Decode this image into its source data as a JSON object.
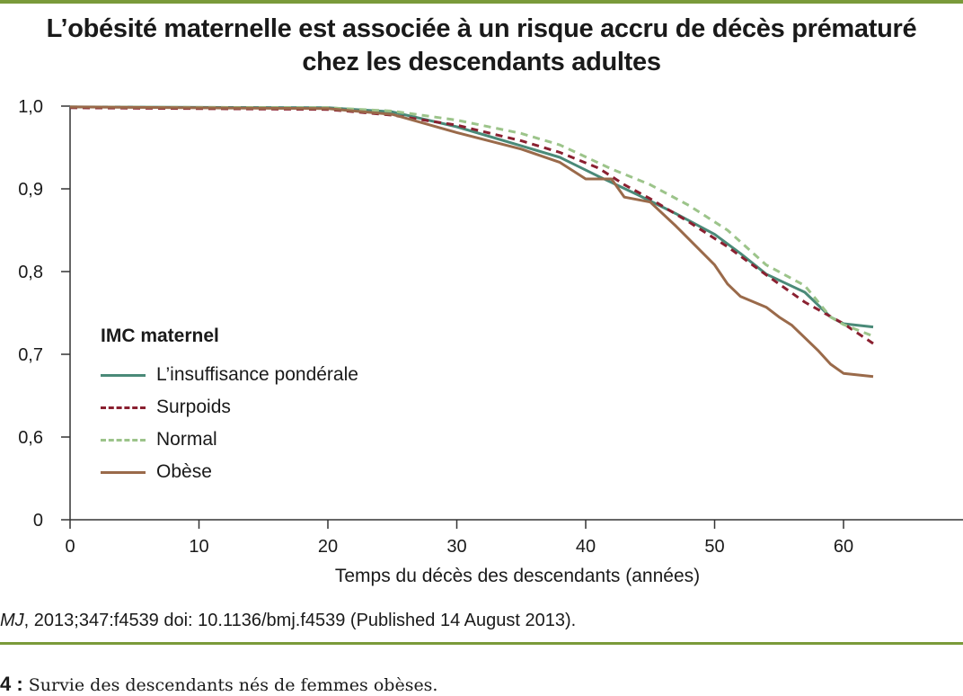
{
  "figure": {
    "title_line1": "L’obésité maternelle est associée à un risque accru de décès prématuré",
    "title_line2": "chez les descendants adultes",
    "source_italic": "MJ",
    "source_text": ", 2013;347:f4539 doi: 10.1136/bmj.f4539 (Published 14 August 2013).",
    "caption_number": "4 :",
    "caption_text": " Survie des descendants nés de femmes obèses."
  },
  "chart_data": {
    "type": "line",
    "xlabel": "Temps du décès des descendants (années)",
    "ylabel": "",
    "legend_title": "IMC maternel",
    "legend_position": "left",
    "grid": false,
    "xlim": [
      0,
      70
    ],
    "x_ticks": [
      0,
      10,
      20,
      30,
      40,
      50,
      60
    ],
    "x_tick_labels": [
      "0",
      "10",
      "20",
      "30",
      "40",
      "50",
      "60"
    ],
    "y_ticks": [
      0,
      0.6,
      0.7,
      0.8,
      0.9,
      1.0
    ],
    "y_tick_labels": [
      "0",
      "0,6",
      "0,7",
      "0,8",
      "0,9",
      "1,0"
    ],
    "y_axis_break": "0 to 0.55",
    "series": [
      {
        "name": "L’insuffisance pondérale",
        "color": "#4a8a78",
        "dash": "solid",
        "points": [
          [
            0,
            0.999
          ],
          [
            20,
            0.998
          ],
          [
            25,
            0.993
          ],
          [
            30,
            0.975
          ],
          [
            35,
            0.952
          ],
          [
            38,
            0.938
          ],
          [
            41,
            0.915
          ],
          [
            44,
            0.893
          ],
          [
            47,
            0.87
          ],
          [
            50,
            0.845
          ],
          [
            52,
            0.822
          ],
          [
            54,
            0.797
          ],
          [
            57,
            0.775
          ],
          [
            59,
            0.745
          ],
          [
            60,
            0.737
          ],
          [
            62.3,
            0.733
          ]
        ]
      },
      {
        "name": "Surpoids",
        "color": "#8a2030",
        "dash": "dashed",
        "points": [
          [
            0,
            0.998
          ],
          [
            20,
            0.996
          ],
          [
            25,
            0.989
          ],
          [
            30,
            0.977
          ],
          [
            35,
            0.958
          ],
          [
            38,
            0.944
          ],
          [
            41,
            0.925
          ],
          [
            43,
            0.905
          ],
          [
            45,
            0.888
          ],
          [
            48,
            0.86
          ],
          [
            51,
            0.83
          ],
          [
            54,
            0.796
          ],
          [
            57,
            0.763
          ],
          [
            60,
            0.737
          ],
          [
            62.3,
            0.713
          ]
        ]
      },
      {
        "name": "Normal",
        "color": "#9cc48a",
        "dash": "dashed",
        "points": [
          [
            0,
            0.999
          ],
          [
            20,
            0.998
          ],
          [
            25,
            0.994
          ],
          [
            30,
            0.983
          ],
          [
            35,
            0.967
          ],
          [
            38,
            0.953
          ],
          [
            42,
            0.924
          ],
          [
            45,
            0.905
          ],
          [
            48,
            0.88
          ],
          [
            51,
            0.85
          ],
          [
            54,
            0.808
          ],
          [
            57,
            0.783
          ],
          [
            59,
            0.745
          ],
          [
            60,
            0.736
          ],
          [
            62.3,
            0.722
          ]
        ]
      },
      {
        "name": "Obèse",
        "color": "#9a6a4a",
        "dash": "solid",
        "points": [
          [
            0,
            0.999
          ],
          [
            20,
            0.997
          ],
          [
            25,
            0.99
          ],
          [
            30,
            0.968
          ],
          [
            35,
            0.948
          ],
          [
            38,
            0.932
          ],
          [
            40,
            0.912
          ],
          [
            42,
            0.912
          ],
          [
            43,
            0.89
          ],
          [
            45,
            0.884
          ],
          [
            47,
            0.855
          ],
          [
            50,
            0.808
          ],
          [
            51,
            0.785
          ],
          [
            52,
            0.77
          ],
          [
            54,
            0.757
          ],
          [
            55,
            0.745
          ],
          [
            56,
            0.735
          ],
          [
            57,
            0.72
          ],
          [
            58,
            0.705
          ],
          [
            59,
            0.688
          ],
          [
            60,
            0.677
          ],
          [
            62.3,
            0.673
          ]
        ]
      }
    ]
  }
}
